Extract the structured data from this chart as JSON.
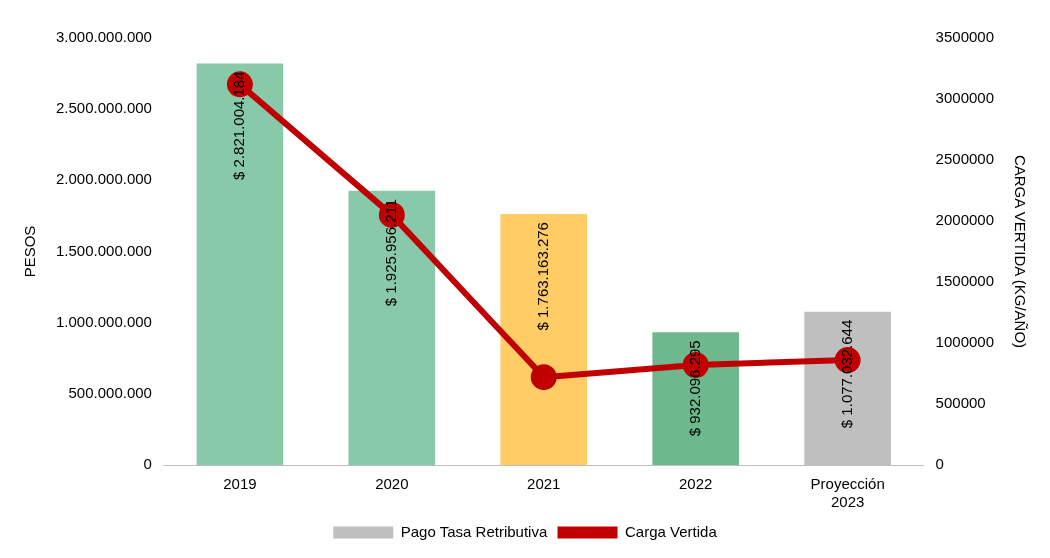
{
  "chart_data": {
    "type": "bar",
    "ylabel": "PESOS",
    "y2label": "CARGA VERTIDA (KG/AÑO)",
    "categories": [
      "2019",
      "2020",
      "2021",
      "2022",
      "Proyección 2023"
    ],
    "series": [
      {
        "name": "Pago Tasa Retributiva",
        "color": "#bfbfbf",
        "colors": [
          "#88c9a9",
          "#88c9a9",
          "#ffcc66",
          "#6db88c",
          "#bfbfbf"
        ],
        "values": [
          2821004184,
          1925956211,
          1763163276,
          932096295,
          1077032644
        ],
        "value_labels": [
          "$ 2.821.004.184",
          "$ 1.925.956.211",
          "$ 1.763.163.276",
          "$ 932.096.295",
          "$ 1.077.032.644"
        ]
      },
      {
        "name": "Carga Vertida",
        "type": "line",
        "axis": "y2",
        "color": "#c00000",
        "marker": "circle",
        "values": [
          3120000,
          2050000,
          720000,
          820000,
          860000
        ]
      }
    ],
    "ylim": [
      0,
      3000000000
    ],
    "yticks": [
      {
        "value": 0,
        "label": "0"
      },
      {
        "value": 500000000,
        "label": "500.000.000"
      },
      {
        "value": 1000000000,
        "label": "1.000.000.000"
      },
      {
        "value": 1500000000,
        "label": "1.500.000.000"
      },
      {
        "value": 2000000000,
        "label": "2.000.000.000"
      },
      {
        "value": 2500000000,
        "label": "2.500.000.000"
      },
      {
        "value": 3000000000,
        "label": "3.000.000.000"
      }
    ],
    "y2lim": [
      0,
      3500000
    ],
    "y2ticks": [
      0,
      500000,
      1000000,
      1500000,
      2000000,
      2500000,
      3000000,
      3500000
    ],
    "legend": "bottom",
    "grid": false
  }
}
